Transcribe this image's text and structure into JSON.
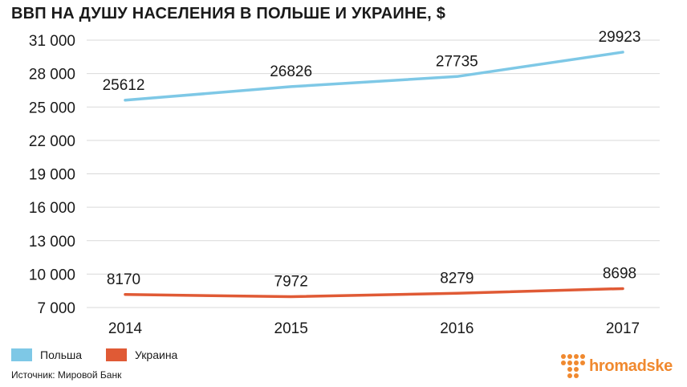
{
  "title": "ВВП НА ДУШУ НАСЕЛЕНИЯ В ПОЛЬШЕ И УКРАИНЕ, $",
  "source": "Источник: Мировой Банк",
  "brand": {
    "name": "hromadske",
    "color": "#f0892f",
    "icon": "dot-grid-logo-icon"
  },
  "chart_data": {
    "type": "line",
    "categories": [
      "2014",
      "2015",
      "2016",
      "2017"
    ],
    "ylim": [
      7000,
      31000
    ],
    "yticks": [
      7000,
      10000,
      13000,
      16000,
      19000,
      22000,
      25000,
      28000,
      31000
    ],
    "ytick_labels": [
      "7 000",
      "10 000",
      "13 000",
      "16 000",
      "19 000",
      "22 000",
      "25 000",
      "28 000",
      "31 000"
    ],
    "grid": true,
    "legend_position": "bottom-left",
    "series": [
      {
        "name": "Польша",
        "color": "#7ec8e6",
        "values": [
          25612,
          26826,
          27735,
          29923
        ]
      },
      {
        "name": "Украина",
        "color": "#e05a35",
        "values": [
          8170,
          7972,
          8279,
          8698
        ]
      }
    ]
  }
}
